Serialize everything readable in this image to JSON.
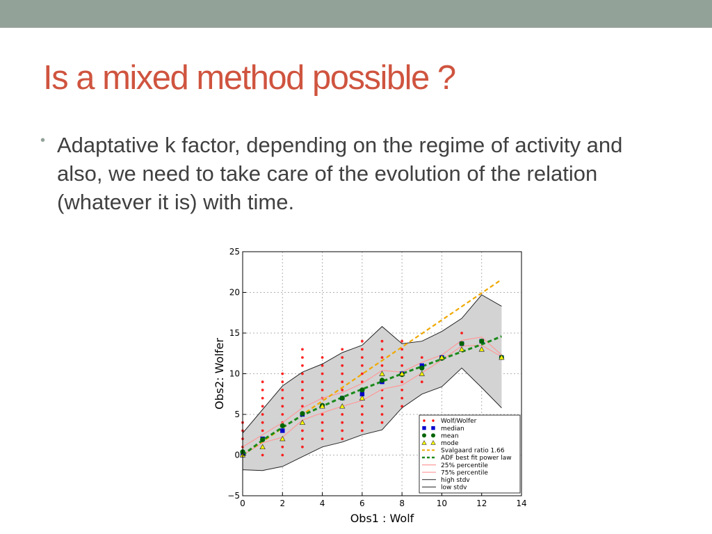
{
  "slide": {
    "title": "Is a mixed method possible ?",
    "bullet": "Adaptative k factor, depending on the regime of activity and also, we need to take care of the evolution of the relation (whatever it is) with time.",
    "colors": {
      "title": "#cf543f",
      "band": "#93a299",
      "text": "#404040"
    }
  },
  "chart_data": {
    "type": "scatter",
    "xlabel": "Obs1 : Wolf",
    "ylabel": "Obs2: Wolfer",
    "xlim": [
      0,
      14
    ],
    "ylim": [
      -5,
      25
    ],
    "xticks": [
      "0",
      "2",
      "4",
      "6",
      "8",
      "10",
      "12",
      "14"
    ],
    "yticks": [
      "−5",
      "0",
      "5",
      "10",
      "15",
      "20",
      "25"
    ],
    "grid": true,
    "legend_position": "lower-right",
    "legend": [
      "Wolf/Wolfer",
      "median",
      "mean",
      "mode",
      "Svalgaard ratio 1.66",
      "ADF best fit power law",
      "25% percentile",
      "75% percentile",
      "high stdv",
      "low stdv"
    ],
    "colors": {
      "scatter": "#ff0000",
      "median": "#0000cc",
      "mean": "#006400",
      "mode": "#ffff00",
      "svalgaard": "#f0a800",
      "adf": "#1a8a1a",
      "p25": "#ff9999",
      "p75": "#ff9999",
      "stdv": "#222222",
      "band": "#d3d3d3"
    },
    "scatter_points": [
      [
        0,
        0
      ],
      [
        0,
        1
      ],
      [
        0,
        2
      ],
      [
        0,
        3
      ],
      [
        0,
        4
      ],
      [
        1,
        0
      ],
      [
        1,
        1
      ],
      [
        1,
        2
      ],
      [
        1,
        3
      ],
      [
        1,
        4
      ],
      [
        1,
        5
      ],
      [
        1,
        6
      ],
      [
        1,
        7
      ],
      [
        1,
        8
      ],
      [
        1,
        9
      ],
      [
        2,
        0
      ],
      [
        2,
        1
      ],
      [
        2,
        2
      ],
      [
        2,
        3
      ],
      [
        2,
        4
      ],
      [
        2,
        5
      ],
      [
        2,
        6
      ],
      [
        2,
        7
      ],
      [
        2,
        8
      ],
      [
        2,
        9
      ],
      [
        2,
        10
      ],
      [
        3,
        1
      ],
      [
        3,
        2
      ],
      [
        3,
        3
      ],
      [
        3,
        4
      ],
      [
        3,
        5
      ],
      [
        3,
        6
      ],
      [
        3,
        7
      ],
      [
        3,
        8
      ],
      [
        3,
        9
      ],
      [
        3,
        10
      ],
      [
        3,
        11
      ],
      [
        3,
        12
      ],
      [
        3,
        13
      ],
      [
        4,
        2
      ],
      [
        4,
        3
      ],
      [
        4,
        4
      ],
      [
        4,
        5
      ],
      [
        4,
        6
      ],
      [
        4,
        7
      ],
      [
        4,
        8
      ],
      [
        4,
        9
      ],
      [
        4,
        10
      ],
      [
        4,
        11
      ],
      [
        4,
        12
      ],
      [
        5,
        2
      ],
      [
        5,
        3
      ],
      [
        5,
        4
      ],
      [
        5,
        5
      ],
      [
        5,
        6
      ],
      [
        5,
        7
      ],
      [
        5,
        8
      ],
      [
        5,
        9
      ],
      [
        5,
        10
      ],
      [
        5,
        11
      ],
      [
        5,
        12
      ],
      [
        5,
        13
      ],
      [
        6,
        3
      ],
      [
        6,
        4
      ],
      [
        6,
        5
      ],
      [
        6,
        6
      ],
      [
        6,
        7
      ],
      [
        6,
        8
      ],
      [
        6,
        9
      ],
      [
        6,
        10
      ],
      [
        6,
        11
      ],
      [
        6,
        12
      ],
      [
        6,
        13
      ],
      [
        6,
        14
      ],
      [
        7,
        4
      ],
      [
        7,
        5
      ],
      [
        7,
        6
      ],
      [
        7,
        7
      ],
      [
        7,
        8
      ],
      [
        7,
        9
      ],
      [
        7,
        10
      ],
      [
        7,
        11
      ],
      [
        7,
        12
      ],
      [
        7,
        13
      ],
      [
        7,
        14
      ],
      [
        8,
        6
      ],
      [
        8,
        7
      ],
      [
        8,
        8
      ],
      [
        8,
        9
      ],
      [
        8,
        10
      ],
      [
        8,
        11
      ],
      [
        8,
        12
      ],
      [
        8,
        13
      ],
      [
        8,
        14
      ],
      [
        9,
        9
      ],
      [
        9,
        10
      ],
      [
        9,
        11
      ],
      [
        9,
        12
      ],
      [
        10,
        12
      ],
      [
        11,
        13
      ],
      [
        11,
        15
      ],
      [
        12,
        14
      ]
    ],
    "median": [
      [
        0,
        0
      ],
      [
        1,
        2
      ],
      [
        2,
        3
      ],
      [
        3,
        5
      ],
      [
        4,
        6
      ],
      [
        5,
        7
      ],
      [
        6,
        7.5
      ],
      [
        7,
        9
      ],
      [
        8,
        10
      ],
      [
        9,
        11
      ],
      [
        10,
        12
      ],
      [
        11,
        13.7
      ],
      [
        12,
        14
      ],
      [
        13,
        12
      ]
    ],
    "mean": [
      [
        0,
        0.4
      ],
      [
        1,
        1.9
      ],
      [
        2,
        3.6
      ],
      [
        3,
        5.1
      ],
      [
        4,
        6.1
      ],
      [
        5,
        7.0
      ],
      [
        6,
        8.0
      ],
      [
        7,
        9.2
      ],
      [
        8,
        9.9
      ],
      [
        9,
        10.7
      ],
      [
        10,
        11.9
      ],
      [
        11,
        13.7
      ],
      [
        12,
        14.0
      ],
      [
        13,
        12.0
      ]
    ],
    "mode": [
      [
        0,
        0
      ],
      [
        1,
        1
      ],
      [
        2,
        2
      ],
      [
        3,
        4
      ],
      [
        4,
        6
      ],
      [
        5,
        6
      ],
      [
        6,
        7
      ],
      [
        7,
        10
      ],
      [
        8,
        10
      ],
      [
        9,
        10
      ],
      [
        10,
        12
      ],
      [
        11,
        13
      ],
      [
        12,
        13
      ],
      [
        13,
        12
      ]
    ],
    "svalgaard": [
      [
        0,
        0
      ],
      [
        13,
        21.58
      ]
    ],
    "adf_power_law": [
      [
        0,
        0
      ],
      [
        1,
        1.83
      ],
      [
        2,
        3.4
      ],
      [
        3,
        4.9
      ],
      [
        4,
        6.0
      ],
      [
        5,
        7.1
      ],
      [
        6,
        8.1
      ],
      [
        7,
        9.05
      ],
      [
        8,
        10.0
      ],
      [
        9,
        10.9
      ],
      [
        10,
        11.8
      ],
      [
        11,
        12.7
      ],
      [
        12,
        13.6
      ],
      [
        13,
        14.6
      ]
    ],
    "p25": [
      [
        0,
        0
      ],
      [
        1,
        1.5
      ],
      [
        2,
        2.2
      ],
      [
        3,
        4.3
      ],
      [
        4,
        5.2
      ],
      [
        5,
        6.0
      ],
      [
        6,
        6.7
      ],
      [
        7,
        8.1
      ],
      [
        8,
        8.6
      ],
      [
        9,
        10.1
      ],
      [
        10,
        11.7
      ],
      [
        11,
        13.4
      ],
      [
        12,
        13.5
      ],
      [
        13,
        12.1
      ]
    ],
    "p75": [
      [
        0,
        1.0
      ],
      [
        1,
        2.5
      ],
      [
        2,
        4.0
      ],
      [
        3,
        5.8
      ],
      [
        4,
        7.0
      ],
      [
        5,
        7.7
      ],
      [
        6,
        8.8
      ],
      [
        7,
        10.4
      ],
      [
        8,
        10.2
      ],
      [
        9,
        11.4
      ],
      [
        10,
        12.3
      ],
      [
        11,
        14.1
      ],
      [
        12,
        14.5
      ],
      [
        13,
        12.3
      ]
    ],
    "high_stdv": [
      [
        0,
        2.7
      ],
      [
        1,
        5.6
      ],
      [
        2,
        8.5
      ],
      [
        3,
        10.2
      ],
      [
        4,
        11.2
      ],
      [
        5,
        12.6
      ],
      [
        6,
        13.5
      ],
      [
        7,
        15.8
      ],
      [
        8,
        13.7
      ],
      [
        9,
        14.0
      ],
      [
        10,
        15.2
      ],
      [
        11,
        16.8
      ],
      [
        12,
        19.7
      ],
      [
        13,
        18.3
      ]
    ],
    "low_stdv": [
      [
        0,
        -1.8
      ],
      [
        1,
        -1.9
      ],
      [
        2,
        -1.4
      ],
      [
        3,
        -0.2
      ],
      [
        4,
        1.0
      ],
      [
        5,
        1.6
      ],
      [
        6,
        2.5
      ],
      [
        7,
        3.1
      ],
      [
        8,
        5.8
      ],
      [
        9,
        7.5
      ],
      [
        10,
        8.4
      ],
      [
        11,
        10.7
      ],
      [
        12,
        8.3
      ],
      [
        13,
        5.8
      ]
    ]
  }
}
